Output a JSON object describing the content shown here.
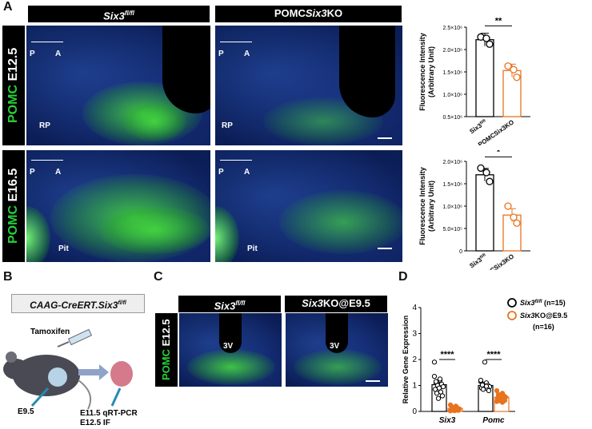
{
  "panels": {
    "A": "A",
    "B": "B",
    "C": "C",
    "D": "D"
  },
  "panelA": {
    "col1": {
      "main": "Six3",
      "sup": "fl/fl"
    },
    "col2": {
      "pre": "POMC",
      "it": "Six3",
      "post": "KO"
    },
    "row1": {
      "green": "POMC",
      "rest": " E12.5"
    },
    "row2": {
      "green": "POMC",
      "rest": " E16.5"
    },
    "arrow_left": "P",
    "arrow_right": "A",
    "rp": "RP",
    "pit": "Pit"
  },
  "panelB": {
    "box": {
      "main": "CAAG-CreERT.Six3",
      "sup": "fl/fl"
    },
    "tamoxifen": "Tamoxifen",
    "e95": "E9.5",
    "e115": "E11.5  qRT-PCR",
    "e125": "E12.5  IF"
  },
  "panelC": {
    "col1": {
      "main": "Six3",
      "sup": "fl/fl"
    },
    "col2": {
      "it": "Six3",
      "post": "KO@E9.5"
    },
    "row": {
      "green": "POMC",
      "rest": " E12.5"
    },
    "v3": "3V"
  },
  "chart_data": [
    {
      "type": "bar",
      "panel": "A-top",
      "ylabel": "Fluorescence Intensity (Arbitrary Unit)",
      "yticks": [
        "0.5×10⁶",
        "1.0×10⁶",
        "1.5×10⁶",
        "2.0×10⁶",
        "2.5×10⁶"
      ],
      "ylim": [
        0.5,
        2.5
      ],
      "categories": [
        "Six3fl/fl",
        "POMCSix3KO"
      ],
      "values": [
        2.22,
        1.53
      ],
      "points": [
        [
          2.28,
          2.25,
          2.12
        ],
        [
          1.63,
          1.55,
          1.38
        ]
      ],
      "significance": "**",
      "colors": [
        "#000000",
        "#e8731e"
      ]
    },
    {
      "type": "bar",
      "panel": "A-bottom",
      "ylabel": "Fluorescence Intensity (Arbitrary Unit)",
      "yticks": [
        "0",
        "5.0×10⁵",
        "1.0×10⁶",
        "1.5×10⁶",
        "2.0×10⁶"
      ],
      "ylim": [
        0,
        2.0
      ],
      "categories": [
        "Six3fl/fl",
        "POMCSix3KO"
      ],
      "values": [
        1.7,
        0.8
      ],
      "points": [
        [
          1.85,
          1.75,
          1.55
        ],
        [
          1.0,
          0.75,
          0.62
        ]
      ],
      "significance": "*",
      "colors": [
        "#000000",
        "#e8731e"
      ]
    },
    {
      "type": "bar",
      "panel": "D",
      "ylabel": "Relative Gene Expression",
      "yticks": [
        "0",
        "1",
        "2",
        "3",
        "4"
      ],
      "ylim": [
        0,
        4
      ],
      "categories": [
        "Six3",
        "Pomc"
      ],
      "series": [
        {
          "name": "Six3fl/fl",
          "n": "(n=15)",
          "values": [
            1.03,
            1.0
          ],
          "color": "#000000"
        },
        {
          "name": "Six3KO@E9.5",
          "n": "(n=16)",
          "values": [
            0.12,
            0.55
          ],
          "color": "#e8731e"
        }
      ],
      "significance": [
        "****",
        "****"
      ]
    }
  ]
}
